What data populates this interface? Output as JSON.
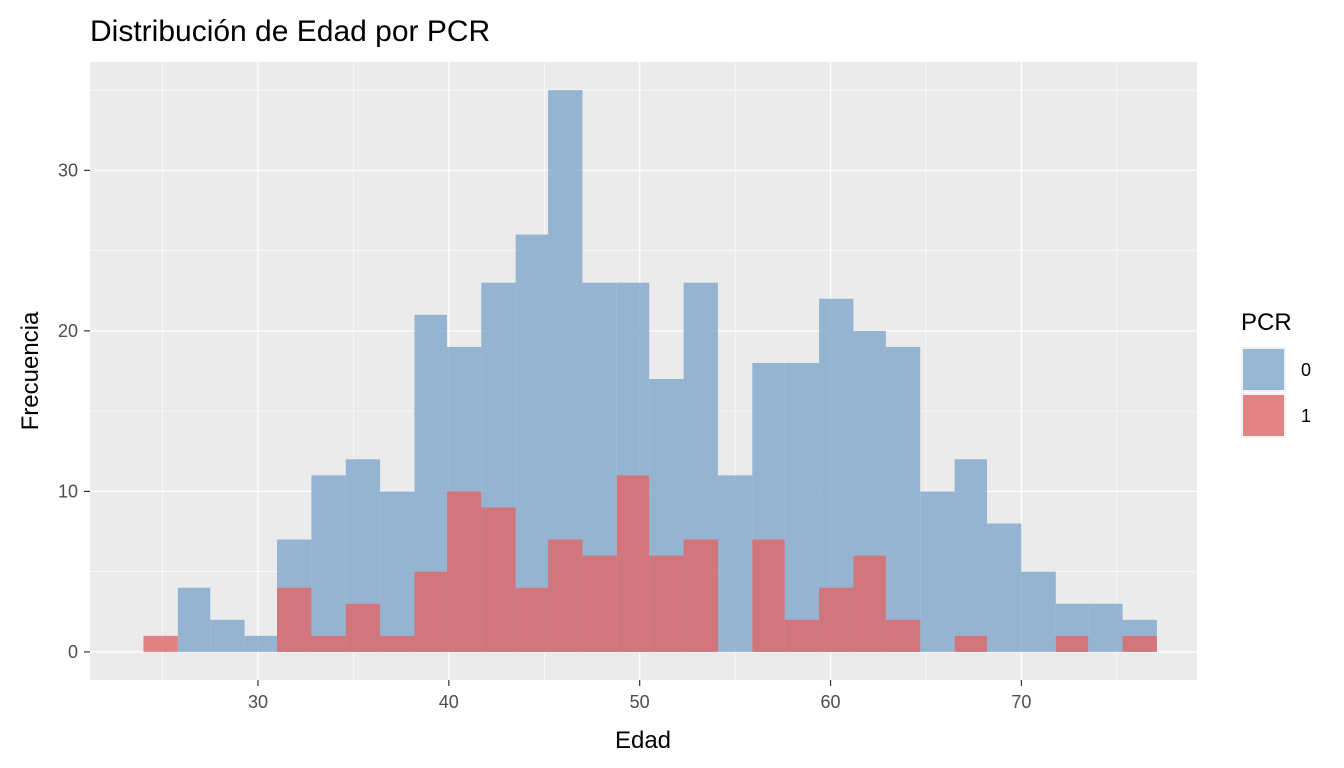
{
  "chart_data": {
    "type": "histogram",
    "title": "Distribución de Edad por PCR",
    "xlabel": "Edad",
    "ylabel": "Frecuencia",
    "xlim": [
      21.2,
      79.2
    ],
    "ylim": [
      -1.75,
      36.75
    ],
    "x_ticks": [
      30,
      40,
      50,
      60,
      70
    ],
    "y_ticks": [
      0,
      10,
      20,
      30
    ],
    "grid": true,
    "legend": {
      "title": "PCR",
      "position": "right"
    },
    "series": [
      {
        "name": "0",
        "color": "#7fa6ca",
        "bins": [
          {
            "x0": 24.0,
            "x1": 25.8,
            "count": 0
          },
          {
            "x0": 25.8,
            "x1": 27.5,
            "count": 4
          },
          {
            "x0": 27.5,
            "x1": 29.3,
            "count": 2
          },
          {
            "x0": 29.3,
            "x1": 31.0,
            "count": 1
          },
          {
            "x0": 31.0,
            "x1": 32.8,
            "count": 7
          },
          {
            "x0": 32.8,
            "x1": 34.6,
            "count": 11
          },
          {
            "x0": 34.6,
            "x1": 36.4,
            "count": 12
          },
          {
            "x0": 36.4,
            "x1": 38.2,
            "count": 10
          },
          {
            "x0": 38.2,
            "x1": 39.9,
            "count": 21
          },
          {
            "x0": 39.9,
            "x1": 41.7,
            "count": 19
          },
          {
            "x0": 41.7,
            "x1": 43.5,
            "count": 23
          },
          {
            "x0": 43.5,
            "x1": 45.2,
            "count": 26
          },
          {
            "x0": 45.2,
            "x1": 47.0,
            "count": 35
          },
          {
            "x0": 47.0,
            "x1": 48.8,
            "count": 23
          },
          {
            "x0": 48.8,
            "x1": 50.5,
            "count": 23
          },
          {
            "x0": 50.5,
            "x1": 52.3,
            "count": 17
          },
          {
            "x0": 52.3,
            "x1": 54.1,
            "count": 23
          },
          {
            "x0": 54.1,
            "x1": 55.9,
            "count": 11
          },
          {
            "x0": 55.9,
            "x1": 57.6,
            "count": 18
          },
          {
            "x0": 57.6,
            "x1": 59.4,
            "count": 18
          },
          {
            "x0": 59.4,
            "x1": 61.2,
            "count": 22
          },
          {
            "x0": 61.2,
            "x1": 62.9,
            "count": 20
          },
          {
            "x0": 62.9,
            "x1": 64.7,
            "count": 19
          },
          {
            "x0": 64.7,
            "x1": 66.5,
            "count": 10
          },
          {
            "x0": 66.5,
            "x1": 68.2,
            "count": 12
          },
          {
            "x0": 68.2,
            "x1": 70.0,
            "count": 8
          },
          {
            "x0": 70.0,
            "x1": 71.8,
            "count": 5
          },
          {
            "x0": 71.8,
            "x1": 73.5,
            "count": 3
          },
          {
            "x0": 73.5,
            "x1": 75.3,
            "count": 3
          },
          {
            "x0": 75.3,
            "x1": 77.1,
            "count": 2
          }
        ]
      },
      {
        "name": "1",
        "color": "#e06666",
        "bins": [
          {
            "x0": 24.0,
            "x1": 25.8,
            "count": 1
          },
          {
            "x0": 25.8,
            "x1": 27.5,
            "count": 0
          },
          {
            "x0": 27.5,
            "x1": 29.3,
            "count": 0
          },
          {
            "x0": 29.3,
            "x1": 31.0,
            "count": 0
          },
          {
            "x0": 31.0,
            "x1": 32.8,
            "count": 4
          },
          {
            "x0": 32.8,
            "x1": 34.6,
            "count": 1
          },
          {
            "x0": 34.6,
            "x1": 36.4,
            "count": 3
          },
          {
            "x0": 36.4,
            "x1": 38.2,
            "count": 1
          },
          {
            "x0": 38.2,
            "x1": 39.9,
            "count": 5
          },
          {
            "x0": 39.9,
            "x1": 41.7,
            "count": 10
          },
          {
            "x0": 41.7,
            "x1": 43.5,
            "count": 9
          },
          {
            "x0": 43.5,
            "x1": 45.2,
            "count": 4
          },
          {
            "x0": 45.2,
            "x1": 47.0,
            "count": 7
          },
          {
            "x0": 47.0,
            "x1": 48.8,
            "count": 6
          },
          {
            "x0": 48.8,
            "x1": 50.5,
            "count": 11
          },
          {
            "x0": 50.5,
            "x1": 52.3,
            "count": 6
          },
          {
            "x0": 52.3,
            "x1": 54.1,
            "count": 7
          },
          {
            "x0": 54.1,
            "x1": 55.9,
            "count": 0
          },
          {
            "x0": 55.9,
            "x1": 57.6,
            "count": 7
          },
          {
            "x0": 57.6,
            "x1": 59.4,
            "count": 2
          },
          {
            "x0": 59.4,
            "x1": 61.2,
            "count": 4
          },
          {
            "x0": 61.2,
            "x1": 62.9,
            "count": 6
          },
          {
            "x0": 62.9,
            "x1": 64.7,
            "count": 2
          },
          {
            "x0": 64.7,
            "x1": 66.5,
            "count": 0
          },
          {
            "x0": 66.5,
            "x1": 68.2,
            "count": 1
          },
          {
            "x0": 68.2,
            "x1": 70.0,
            "count": 0
          },
          {
            "x0": 70.0,
            "x1": 71.8,
            "count": 0
          },
          {
            "x0": 71.8,
            "x1": 73.5,
            "count": 1
          },
          {
            "x0": 73.5,
            "x1": 75.3,
            "count": 0
          },
          {
            "x0": 75.3,
            "x1": 77.1,
            "count": 1
          }
        ]
      }
    ]
  }
}
